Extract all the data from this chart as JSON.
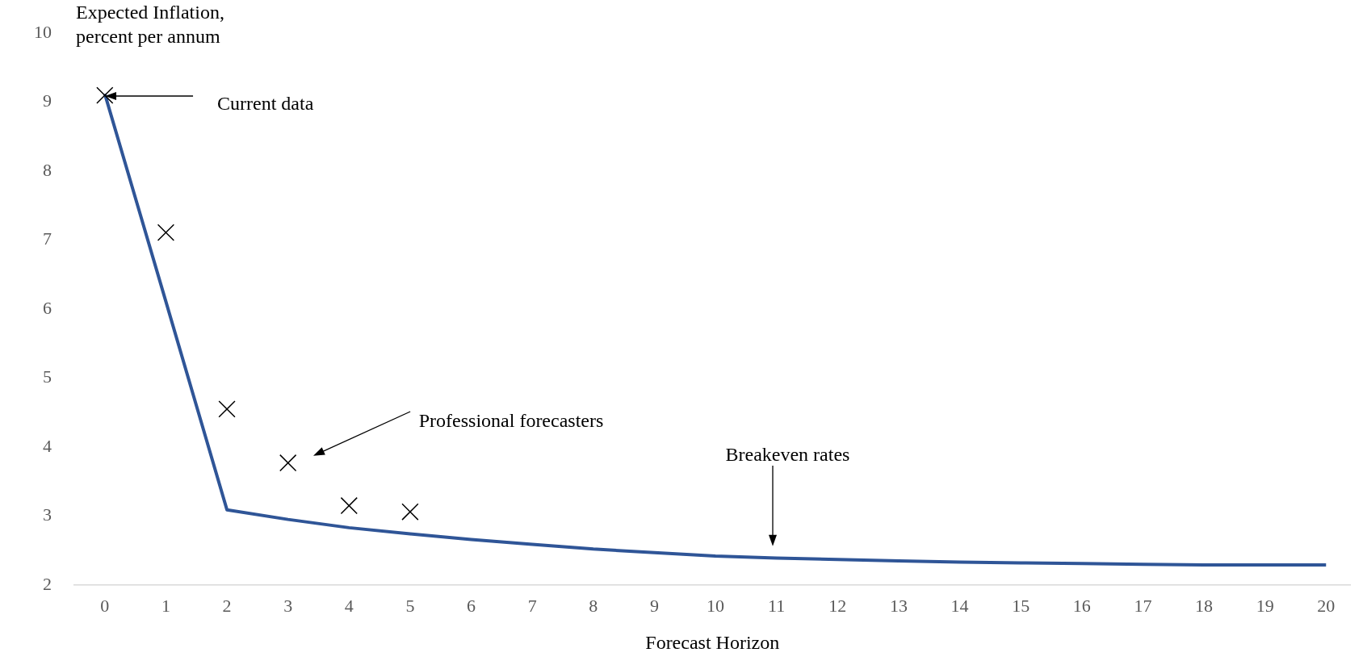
{
  "chart_data": {
    "type": "line",
    "ylabel": "Expected Inflation,\npercent per annum",
    "xlabel": "Forecast Horizon",
    "xlim": [
      -0.5,
      20.4
    ],
    "xticks": [
      0,
      1,
      2,
      3,
      4,
      5,
      6,
      7,
      8,
      9,
      10,
      11,
      12,
      13,
      14,
      15,
      16,
      17,
      18,
      19,
      20
    ],
    "ylim": [
      2,
      10
    ],
    "yticks": [
      2,
      3,
      4,
      5,
      6,
      7,
      8,
      9,
      10
    ],
    "grid": false,
    "legend": false,
    "series": [
      {
        "color": "#2f5597",
        "marker": "none",
        "x": [
          0,
          1,
          2,
          3,
          4,
          5,
          6,
          7,
          8,
          9,
          10,
          11,
          12,
          13,
          14,
          15,
          16,
          17,
          18,
          19,
          20
        ],
        "values": [
          9.12,
          6.11,
          3.09,
          2.95,
          2.83,
          2.74,
          2.66,
          2.59,
          2.52,
          2.47,
          2.42,
          2.39,
          2.37,
          2.35,
          2.33,
          2.32,
          2.31,
          2.3,
          2.29,
          2.29,
          2.29
        ]
      },
      {
        "type": "scatter",
        "color": "#000000",
        "marker": "cross",
        "x": [
          0,
          1,
          2,
          3,
          4,
          5
        ],
        "values": [
          9.1,
          7.11,
          4.55,
          3.77,
          3.15,
          3.06
        ]
      }
    ],
    "annotations": [
      "Current data",
      "Professional forecasters",
      "Breakeven rates"
    ]
  }
}
